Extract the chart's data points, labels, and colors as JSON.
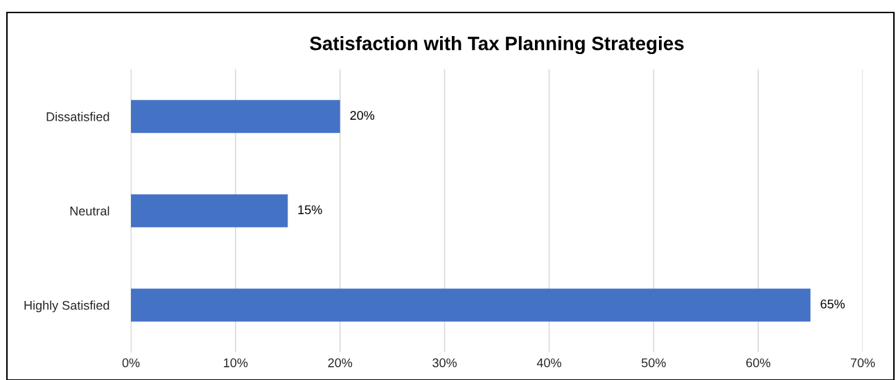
{
  "chart_data": {
    "type": "bar",
    "orientation": "horizontal",
    "title": "Satisfaction with Tax Planning Strategies",
    "categories": [
      "Dissatisfied",
      "Neutral",
      "Highly Satisfied"
    ],
    "values": [
      20,
      15,
      65
    ],
    "color": "#4472c4",
    "value_labels": [
      "20%",
      "15%",
      "65%"
    ],
    "xlim": [
      0,
      70
    ],
    "xticks": [
      {
        "value": 0,
        "label": "0%"
      },
      {
        "value": 10,
        "label": "10%"
      },
      {
        "value": 20,
        "label": "20%"
      },
      {
        "value": 30,
        "label": "30%"
      },
      {
        "value": 40,
        "label": "40%"
      },
      {
        "value": 50,
        "label": "50%"
      },
      {
        "value": 60,
        "label": "60%"
      },
      {
        "value": 70,
        "label": "70%"
      }
    ],
    "grid": "x",
    "legend": false
  }
}
